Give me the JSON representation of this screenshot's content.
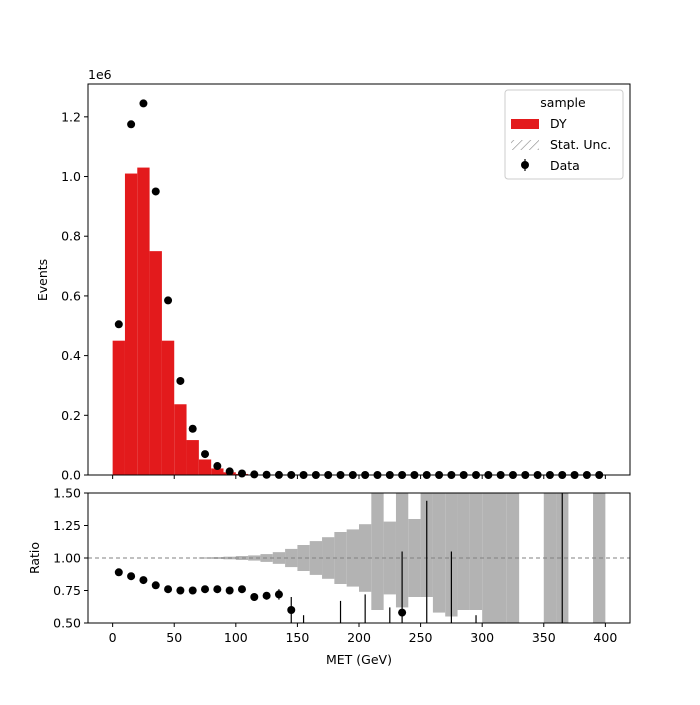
{
  "chart_data": [
    {
      "panel": "main",
      "type": "bar",
      "ylabel": "Events",
      "offset_text": "1e6",
      "xlim": [
        -20,
        420
      ],
      "ylim": [
        0,
        1310000
      ],
      "yticks": [
        0,
        200000,
        400000,
        600000,
        800000,
        1000000,
        1200000
      ],
      "ytick_labels": [
        "0.0",
        "0.2",
        "0.4",
        "0.6",
        "0.8",
        "1.0",
        "1.2"
      ],
      "bin_edges": [
        0,
        10,
        20,
        30,
        40,
        50,
        60,
        70,
        80,
        90,
        100,
        110,
        120,
        130,
        140,
        150,
        160,
        170,
        180,
        190,
        200,
        210,
        220,
        230,
        240,
        250,
        260,
        270,
        280,
        290,
        300,
        310,
        320,
        330,
        340,
        350,
        360,
        370,
        380,
        390,
        400
      ],
      "bin_centers": [
        5,
        15,
        25,
        35,
        45,
        55,
        65,
        75,
        85,
        95,
        105,
        115,
        125,
        135,
        145,
        155,
        165,
        175,
        185,
        195,
        205,
        215,
        225,
        235,
        245,
        255,
        265,
        275,
        285,
        295,
        305,
        315,
        325,
        335,
        345,
        355,
        365,
        375,
        385,
        395
      ],
      "series": [
        {
          "name": "DY",
          "kind": "histogram",
          "color": "#e31a1c",
          "values": [
            450000,
            1010000,
            1030000,
            750000,
            450000,
            237000,
            117000,
            52000,
            22000,
            9000,
            3500,
            1500,
            700,
            300,
            150,
            80,
            40,
            20,
            10,
            5,
            3,
            2,
            1,
            1,
            1,
            1,
            0,
            0,
            0,
            0,
            0,
            0,
            0,
            0,
            0,
            0,
            0,
            0,
            0,
            0
          ]
        },
        {
          "name": "Data",
          "kind": "errorbar",
          "color": "#000000",
          "values": [
            505000,
            1175000,
            1245000,
            950000,
            585000,
            315000,
            155000,
            70000,
            30000,
            12000,
            5000,
            2000,
            800,
            300,
            90,
            50,
            20,
            8,
            4,
            2,
            1,
            1,
            1,
            1,
            1,
            1,
            1,
            1,
            1,
            1,
            1,
            1,
            1,
            1,
            1,
            1,
            1,
            1,
            1,
            1
          ]
        }
      ],
      "legend": {
        "title": "sample",
        "position": "upper right",
        "entries": [
          {
            "label": "DY",
            "kind": "patch",
            "color": "#e31a1c"
          },
          {
            "label": "Stat. Unc.",
            "kind": "hatch",
            "color": "#808080"
          },
          {
            "label": "Data",
            "kind": "errorbar",
            "color": "#000000"
          }
        ]
      }
    },
    {
      "panel": "ratio",
      "type": "scatter",
      "xlabel": "MET (GeV)",
      "ylabel": "Ratio",
      "xlim": [
        -20,
        420
      ],
      "ylim": [
        0.5,
        1.5
      ],
      "xticks": [
        0,
        50,
        100,
        150,
        200,
        250,
        300,
        350,
        400
      ],
      "yticks": [
        0.5,
        0.75,
        1.0,
        1.25,
        1.5
      ],
      "ytick_labels": [
        "0.50",
        "0.75",
        "1.00",
        "1.25",
        "1.50"
      ],
      "reference_line": 1.0,
      "uncertainty_band": {
        "color": "#b3b3b3",
        "bins": [
          {
            "x0": 70,
            "x1": 80,
            "lo": 0.995,
            "hi": 1.005
          },
          {
            "x0": 80,
            "x1": 90,
            "lo": 0.993,
            "hi": 1.007
          },
          {
            "x0": 90,
            "x1": 100,
            "lo": 0.99,
            "hi": 1.01
          },
          {
            "x0": 100,
            "x1": 110,
            "lo": 0.985,
            "hi": 1.015
          },
          {
            "x0": 110,
            "x1": 120,
            "lo": 0.98,
            "hi": 1.02
          },
          {
            "x0": 120,
            "x1": 130,
            "lo": 0.97,
            "hi": 1.03
          },
          {
            "x0": 130,
            "x1": 140,
            "lo": 0.955,
            "hi": 1.045
          },
          {
            "x0": 140,
            "x1": 150,
            "lo": 0.93,
            "hi": 1.07
          },
          {
            "x0": 150,
            "x1": 160,
            "lo": 0.9,
            "hi": 1.1
          },
          {
            "x0": 160,
            "x1": 170,
            "lo": 0.87,
            "hi": 1.13
          },
          {
            "x0": 170,
            "x1": 180,
            "lo": 0.84,
            "hi": 1.16
          },
          {
            "x0": 180,
            "x1": 190,
            "lo": 0.8,
            "hi": 1.2
          },
          {
            "x0": 190,
            "x1": 200,
            "lo": 0.78,
            "hi": 1.22
          },
          {
            "x0": 200,
            "x1": 210,
            "lo": 0.74,
            "hi": 1.26
          },
          {
            "x0": 210,
            "x1": 220,
            "lo": 0.6,
            "hi": 1.5
          },
          {
            "x0": 220,
            "x1": 230,
            "lo": 0.72,
            "hi": 1.28
          },
          {
            "x0": 230,
            "x1": 240,
            "lo": 0.62,
            "hi": 1.5
          },
          {
            "x0": 240,
            "x1": 250,
            "lo": 0.7,
            "hi": 1.3
          },
          {
            "x0": 250,
            "x1": 260,
            "lo": 0.7,
            "hi": 1.5
          },
          {
            "x0": 260,
            "x1": 270,
            "lo": 0.58,
            "hi": 1.5
          },
          {
            "x0": 270,
            "x1": 280,
            "lo": 0.55,
            "hi": 1.5
          },
          {
            "x0": 280,
            "x1": 290,
            "lo": 0.6,
            "hi": 1.5
          },
          {
            "x0": 290,
            "x1": 300,
            "lo": 0.6,
            "hi": 1.5
          },
          {
            "x0": 300,
            "x1": 310,
            "lo": 0.5,
            "hi": 1.5
          },
          {
            "x0": 310,
            "x1": 320,
            "lo": 0.5,
            "hi": 1.5
          },
          {
            "x0": 320,
            "x1": 330,
            "lo": 0.5,
            "hi": 1.5
          },
          {
            "x0": 350,
            "x1": 360,
            "lo": 0.5,
            "hi": 1.5
          },
          {
            "x0": 360,
            "x1": 370,
            "lo": 0.5,
            "hi": 1.5
          },
          {
            "x0": 390,
            "x1": 400,
            "lo": 0.5,
            "hi": 1.5
          }
        ]
      },
      "points": [
        {
          "x": 5,
          "y": 0.89
        },
        {
          "x": 15,
          "y": 0.86
        },
        {
          "x": 25,
          "y": 0.83
        },
        {
          "x": 35,
          "y": 0.79
        },
        {
          "x": 45,
          "y": 0.76
        },
        {
          "x": 55,
          "y": 0.75
        },
        {
          "x": 65,
          "y": 0.75
        },
        {
          "x": 75,
          "y": 0.76
        },
        {
          "x": 85,
          "y": 0.76
        },
        {
          "x": 95,
          "y": 0.75
        },
        {
          "x": 105,
          "y": 0.76
        },
        {
          "x": 115,
          "y": 0.7,
          "err": [
            0.67,
            0.72
          ]
        },
        {
          "x": 125,
          "y": 0.71,
          "err": [
            0.68,
            0.73
          ]
        },
        {
          "x": 135,
          "y": 0.72,
          "err": [
            0.68,
            0.76
          ]
        },
        {
          "x": 145,
          "y": 0.6,
          "err": [
            0.5,
            0.7
          ]
        },
        {
          "x": 235,
          "y": 0.58,
          "err": [
            0.5,
            1.05
          ]
        }
      ],
      "offscale_error_bars": [
        {
          "x": 155,
          "y_top": 0.56
        },
        {
          "x": 185,
          "y_top": 0.67
        },
        {
          "x": 205,
          "y_top": 0.72
        },
        {
          "x": 225,
          "y_top": 0.62
        },
        {
          "x": 255,
          "y_top": 1.44
        },
        {
          "x": 275,
          "y_top": 1.05
        },
        {
          "x": 295,
          "y_top": 0.56
        },
        {
          "x": 365,
          "y_top": 1.5
        }
      ]
    }
  ]
}
